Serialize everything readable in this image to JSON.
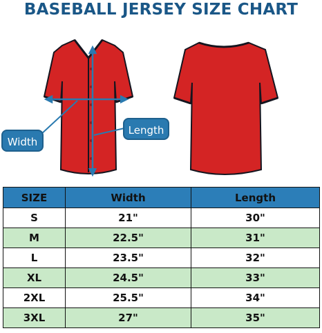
{
  "title": "BASEBALL JERSEY SIZE CHART",
  "callouts": {
    "width": "Width",
    "length": "Length"
  },
  "colors": {
    "title": "#1a5787",
    "jersey": "#d42424",
    "trim": "#15151f",
    "header_bg": "#2c7eb8",
    "row_alt": "#c9e9c8",
    "callout_bg": "#2a7ab0"
  },
  "table": {
    "headers": [
      "SIZE",
      "Width",
      "Length"
    ],
    "rows": [
      [
        "S",
        "21\"",
        "30\""
      ],
      [
        "M",
        "22.5\"",
        "31\""
      ],
      [
        "L",
        "23.5\"",
        "32\""
      ],
      [
        "XL",
        "24.5\"",
        "33\""
      ],
      [
        "2XL",
        "25.5\"",
        "34\""
      ],
      [
        "3XL",
        "27\"",
        "35\""
      ]
    ]
  }
}
